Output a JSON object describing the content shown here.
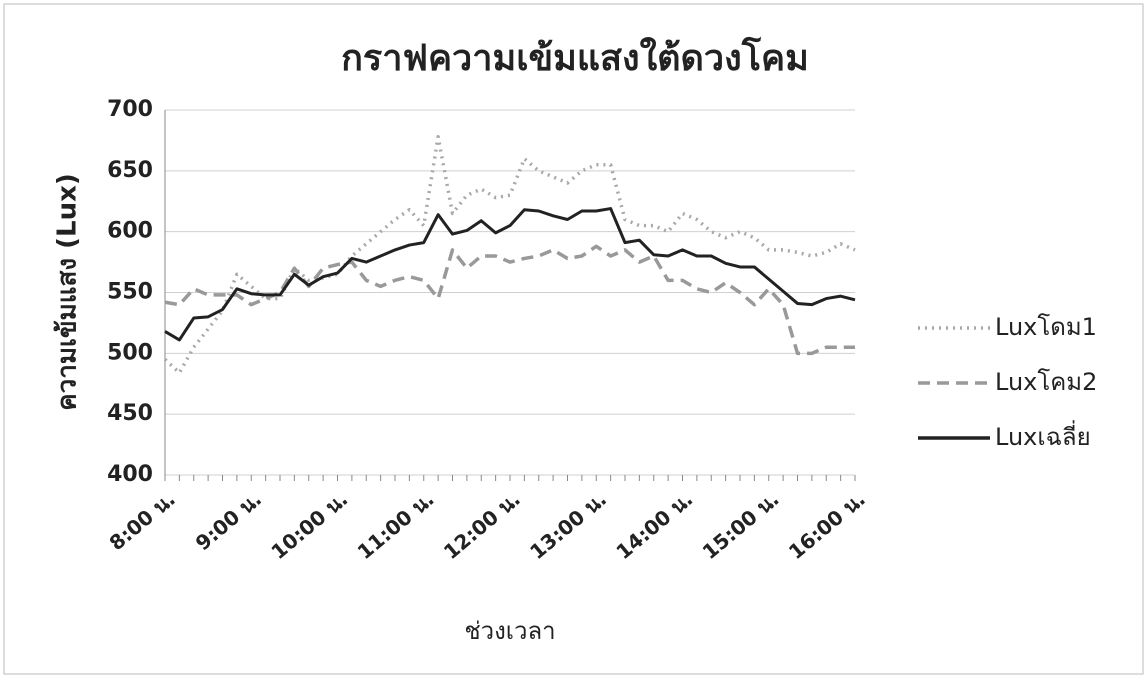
{
  "chart_data": {
    "type": "line",
    "title": "กราฟความเข้มแสงใต้ดวงโคม",
    "x_label": "ช่วงเวลา",
    "y_label": "ความเข้มแสง (Lux)",
    "categories": [
      "8:00 น.",
      null,
      null,
      null,
      null,
      null,
      "9:00 น.",
      null,
      null,
      null,
      null,
      null,
      "10:00 น.",
      null,
      null,
      null,
      null,
      null,
      "11:00 น.",
      null,
      null,
      null,
      null,
      null,
      "12:00 น.",
      null,
      null,
      null,
      null,
      null,
      "13:00 น.",
      null,
      null,
      null,
      null,
      null,
      "14:00 น.",
      null,
      null,
      null,
      null,
      null,
      "15:00 น.",
      null,
      null,
      null,
      null,
      null,
      "16:00 น."
    ],
    "series": [
      {
        "name": "Luxโดม1",
        "color": "#a8a8a8",
        "style": "dotted",
        "values": [
          495,
          484,
          505,
          520,
          535,
          565,
          555,
          545,
          545,
          570,
          560,
          562,
          565,
          580,
          590,
          600,
          610,
          618,
          605,
          678,
          615,
          630,
          635,
          628,
          630,
          660,
          650,
          645,
          640,
          650,
          655,
          655,
          610,
          605,
          605,
          600,
          615,
          610,
          600,
          595,
          600,
          595,
          585,
          585,
          583,
          580,
          583,
          590,
          585
        ]
      },
      {
        "name": "Luxโคม2",
        "color": "#999999",
        "style": "dashed",
        "values": [
          542,
          540,
          553,
          548,
          548,
          548,
          540,
          545,
          550,
          570,
          555,
          570,
          573,
          575,
          560,
          555,
          560,
          563,
          560,
          545,
          585,
          570,
          580,
          580,
          575,
          578,
          580,
          585,
          578,
          580,
          588,
          580,
          585,
          575,
          580,
          560,
          560,
          553,
          550,
          558,
          550,
          540,
          553,
          540,
          500,
          500,
          505,
          505,
          505
        ]
      },
      {
        "name": "Luxเฉลี่ย",
        "color": "#222222",
        "style": "solid",
        "values": [
          518,
          511,
          529,
          530,
          536,
          553,
          549,
          548,
          548,
          565,
          556,
          563,
          566,
          578,
          575,
          580,
          585,
          589,
          591,
          614,
          598,
          601,
          609,
          599,
          605,
          618,
          617,
          613,
          610,
          617,
          617,
          619,
          591,
          593,
          581,
          580,
          585,
          580,
          580,
          574,
          571,
          571,
          561,
          551,
          541,
          540,
          545,
          547,
          544
        ]
      }
    ],
    "ylim": [
      400,
      700
    ],
    "yticks": [
      400,
      450,
      500,
      550,
      600,
      650,
      700
    ],
    "grid": true,
    "legend": "right"
  }
}
